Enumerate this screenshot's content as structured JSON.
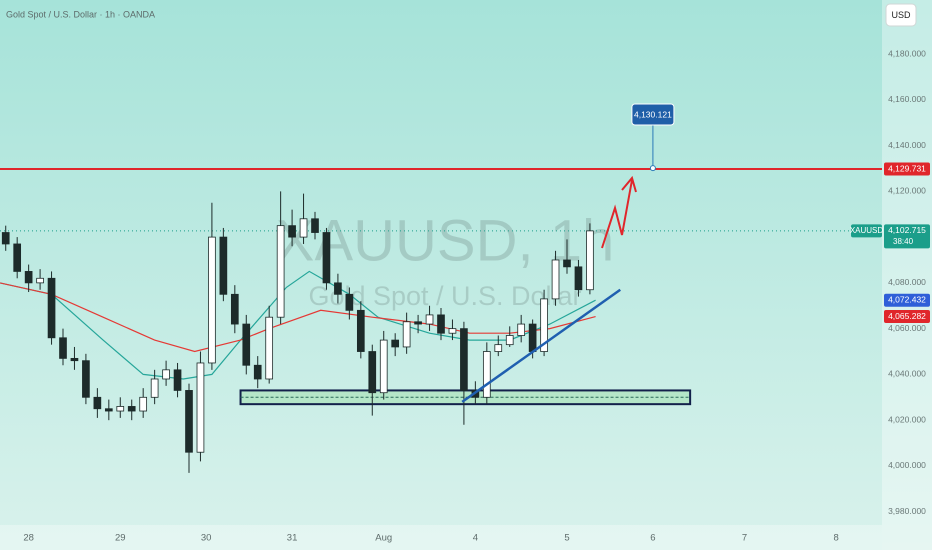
{
  "chart_data": {
    "type": "candlestick",
    "title": "Gold Spot / U.S. Dollar · 1h · OANDA",
    "currency": "USD",
    "watermark": {
      "symbol": "XAUUSD, 1h",
      "description": "Gold Spot / U.S. Dollar"
    },
    "up_color": "#ffffff",
    "down_color": "#1d2b2a",
    "wick_color": "#1d2b2a",
    "x": [
      0,
      2,
      4,
      6,
      8,
      10,
      12,
      14,
      16,
      18,
      20,
      22,
      24,
      26,
      28,
      30,
      32,
      34,
      36,
      38,
      40,
      42,
      44,
      46,
      48,
      50,
      52,
      54,
      56,
      58,
      60,
      62,
      64,
      66,
      68,
      70,
      72,
      74,
      76,
      78,
      80,
      82,
      84,
      86,
      88,
      90,
      92,
      94,
      96,
      98,
      100,
      102
    ],
    "open": [
      4102,
      4097,
      4085,
      4080,
      4082,
      4056,
      4047,
      4046,
      4030,
      4025,
      4024,
      4026,
      4024,
      4030,
      4038,
      4042,
      4033,
      4006,
      4045,
      4100,
      4075,
      4062,
      4044,
      4038,
      4065,
      4105,
      4100,
      4108,
      4102,
      4080,
      4075,
      4068,
      4050,
      4032,
      4055,
      4052,
      4063,
      4062,
      4066,
      4058,
      4060,
      4033,
      4030,
      4050,
      4053,
      4057,
      4062,
      4050,
      4073,
      4090,
      4087,
      4077
    ],
    "high": [
      4105,
      4100,
      4088,
      4086,
      4085,
      4060,
      4052,
      4049,
      4034,
      4029,
      4030,
      4029,
      4034,
      4042,
      4046,
      4045,
      4036,
      4050,
      4115,
      4104,
      4079,
      4066,
      4048,
      4070,
      4120,
      4112,
      4119,
      4111,
      4104,
      4084,
      4078,
      4072,
      4053,
      4059,
      4058,
      4067,
      4066,
      4070,
      4069,
      4064,
      4063,
      4037,
      4054,
      4057,
      4061,
      4066,
      4064,
      4077,
      4094,
      4099,
      4090,
      4106
    ],
    "low": [
      4094,
      4082,
      4076,
      4077,
      4053,
      4044,
      4042,
      4027,
      4021,
      4020,
      4021,
      4020,
      4021,
      4027,
      4035,
      4030,
      3997,
      4002,
      4042,
      4072,
      4058,
      4040,
      4034,
      4036,
      4062,
      4096,
      4097,
      4099,
      4077,
      4071,
      4064,
      4047,
      4022,
      4029,
      4048,
      4049,
      4058,
      4059,
      4055,
      4055,
      4018,
      4027,
      4027,
      4048,
      4052,
      4054,
      4047,
      4048,
      4070,
      4084,
      4074,
      4075
    ],
    "close": [
      4097,
      4085,
      4080,
      4082,
      4056,
      4047,
      4046,
      4030,
      4025,
      4024,
      4026,
      4024,
      4030,
      4038,
      4042,
      4033,
      4006,
      4045,
      4100,
      4075,
      4062,
      4044,
      4038,
      4065,
      4105,
      4100,
      4108,
      4102,
      4080,
      4075,
      4068,
      4050,
      4032,
      4055,
      4052,
      4063,
      4062,
      4066,
      4058,
      4060,
      4033,
      4030,
      4050,
      4053,
      4057,
      4062,
      4050,
      4073,
      4090,
      4087,
      4077,
      4102.715
    ],
    "overlays": [
      {
        "color": "#26a69a",
        "x": [
          -1,
          8,
          17,
          24,
          31,
          36,
          41,
          49,
          53,
          60,
          65,
          74,
          81,
          88,
          95,
          103
        ],
        "values": [
          4080,
          4075,
          4055,
          4040,
          4038,
          4040,
          4055,
          4078,
          4085,
          4075,
          4065,
          4058,
          4055,
          4055,
          4062,
          4072.432
        ]
      },
      {
        "color": "#e53935",
        "x": [
          -1,
          8,
          17,
          26,
          33,
          41,
          46,
          55,
          64,
          74,
          81,
          88,
          95,
          103
        ],
        "values": [
          4080,
          4075,
          4065,
          4055,
          4050,
          4055,
          4060,
          4068,
          4065,
          4062,
          4058,
          4058,
          4060,
          4065.282
        ]
      }
    ],
    "support_zone": {
      "x": [
        41,
        119.5
      ],
      "values": [
        4027,
        4033
      ],
      "mid": 4030
    },
    "trendline": {
      "x": [
        79.7,
        107.3
      ],
      "values": [
        4028,
        4077
      ]
    },
    "target": {
      "value": 4130.121,
      "label": "4,130.121",
      "x": 113
    },
    "levels": [
      {
        "value": 4129.731,
        "label": "4,129.731",
        "color": "#e0262b",
        "line": "solid"
      },
      {
        "value": 4102.715,
        "label": "4,102.715",
        "color": "#1b9e8a",
        "line": "dotted",
        "symbol": "XAUUSD",
        "countdown": "38:40"
      },
      {
        "value": 4072.432,
        "label": "4,072.432",
        "color": "#2f5fd8",
        "line": "none"
      },
      {
        "value": 4065.282,
        "label": "4,065.282",
        "color": "#e0262b",
        "line": "none"
      }
    ],
    "xlim": [
      -1,
      153
    ],
    "ylim": [
      3974.2,
      4203.6
    ],
    "xticks": [
      {
        "value": 4,
        "label": "28"
      },
      {
        "value": 20,
        "label": "29"
      },
      {
        "value": 35,
        "label": "30"
      },
      {
        "value": 50,
        "label": "31"
      },
      {
        "value": 66,
        "label": "Aug"
      },
      {
        "value": 82,
        "label": "4"
      },
      {
        "value": 98,
        "label": "5"
      },
      {
        "value": 113,
        "label": "6"
      },
      {
        "value": 129,
        "label": "7"
      },
      {
        "value": 145,
        "label": "8"
      }
    ],
    "yticks": [
      {
        "value": 3980,
        "label": "3,980.000"
      },
      {
        "value": 4000,
        "label": "4,000.000"
      },
      {
        "value": 4020,
        "label": "4,020.000"
      },
      {
        "value": 4040,
        "label": "4,040.000"
      },
      {
        "value": 4060,
        "label": "4,060.000"
      },
      {
        "value": 4080,
        "label": "4,080.000"
      },
      {
        "value": 4100,
        "label": "4,100.000"
      },
      {
        "value": 4120,
        "label": "4,120.000"
      },
      {
        "value": 4140,
        "label": "4,140.000"
      },
      {
        "value": 4160,
        "label": "4,160.000"
      },
      {
        "value": 4180,
        "label": "4,180.000"
      }
    ],
    "grid": false
  }
}
